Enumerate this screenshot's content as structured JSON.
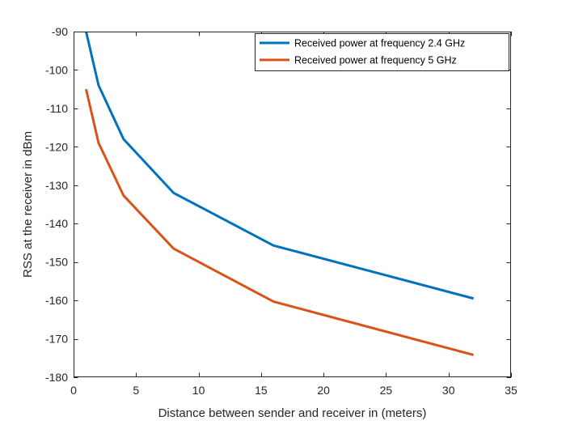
{
  "chart_data": {
    "type": "line",
    "title": "",
    "xlabel": "Distance between sender and receiver in (meters)",
    "ylabel": "RSS at the receiver in dBm",
    "xlim": [
      0,
      35
    ],
    "ylim": [
      -180,
      -90
    ],
    "xticks": [
      0,
      5,
      10,
      15,
      20,
      25,
      30,
      35
    ],
    "yticks": [
      -180,
      -170,
      -160,
      -150,
      -140,
      -130,
      -120,
      -110,
      -100,
      -90
    ],
    "grid": false,
    "legend_position": "top-right",
    "series": [
      {
        "name": "Received power at frequency 2.4 GHz",
        "color": "#0072BD",
        "x": [
          1,
          2,
          4,
          8,
          16,
          32
        ],
        "y": [
          -90,
          -104,
          -118,
          -132,
          -145.7,
          -159.5
        ]
      },
      {
        "name": "Received power at frequency 5 GHz",
        "color": "#D95319",
        "x": [
          1,
          2,
          4,
          8,
          16,
          32
        ],
        "y": [
          -105,
          -119,
          -132.7,
          -146.5,
          -160.3,
          -174.2
        ]
      }
    ]
  }
}
